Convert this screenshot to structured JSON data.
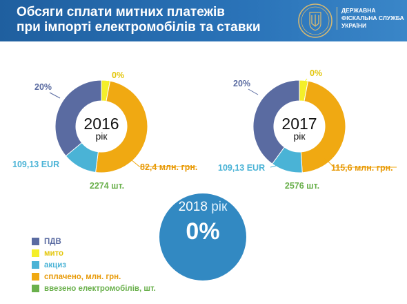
{
  "header": {
    "title_line1": "Обсяги сплати митних платежів",
    "title_line2": "при імпорті електромобілів та ставки",
    "agency_line1": "Державна",
    "agency_line2": "фіскальна служба",
    "agency_line3": "України"
  },
  "emblem": {
    "icon": "trident-emblem-icon",
    "color": "#d4b872"
  },
  "colors": {
    "pdv": "#5a6ba1",
    "myto": "#f4ef2a",
    "aktsyz": "#4ab3d6",
    "paid": "#f0a912",
    "imported": "#6ab04c",
    "circle2018": "#3289c2"
  },
  "legend": [
    {
      "key": "pdv",
      "label": "ПДВ"
    },
    {
      "key": "myto",
      "label": "мито"
    },
    {
      "key": "aktsyz",
      "label": "акциз"
    },
    {
      "key": "paid",
      "label": "сплачено, млн. грн."
    },
    {
      "key": "imported",
      "label": "ввезено електромобілів, шт."
    }
  ],
  "chart_data": [
    {
      "type": "pie",
      "year_label": "2016",
      "year_sub": "рік",
      "slices": [
        {
          "key": "myto",
          "label": "0%",
          "value": 3
        },
        {
          "key": "paid",
          "label": "82,4 млн. грн.",
          "value": 49
        },
        {
          "key": "aktsyz",
          "label": "109,13 EUR",
          "value": 12
        },
        {
          "key": "pdv",
          "label": "20%",
          "value": 36
        }
      ],
      "count_label": "2274 шт."
    },
    {
      "type": "pie",
      "year_label": "2017",
      "year_sub": "рік",
      "slices": [
        {
          "key": "myto",
          "label": "0%",
          "value": 3
        },
        {
          "key": "paid",
          "label": "115,6 млн. грн.",
          "value": 46
        },
        {
          "key": "aktsyz",
          "label": "109,13 EUR",
          "value": 11
        },
        {
          "key": "pdv",
          "label": "20%",
          "value": 40
        }
      ],
      "count_label": "2576 шт."
    }
  ],
  "year2018": {
    "title": "2018",
    "sub": "рік",
    "value": "0%"
  }
}
